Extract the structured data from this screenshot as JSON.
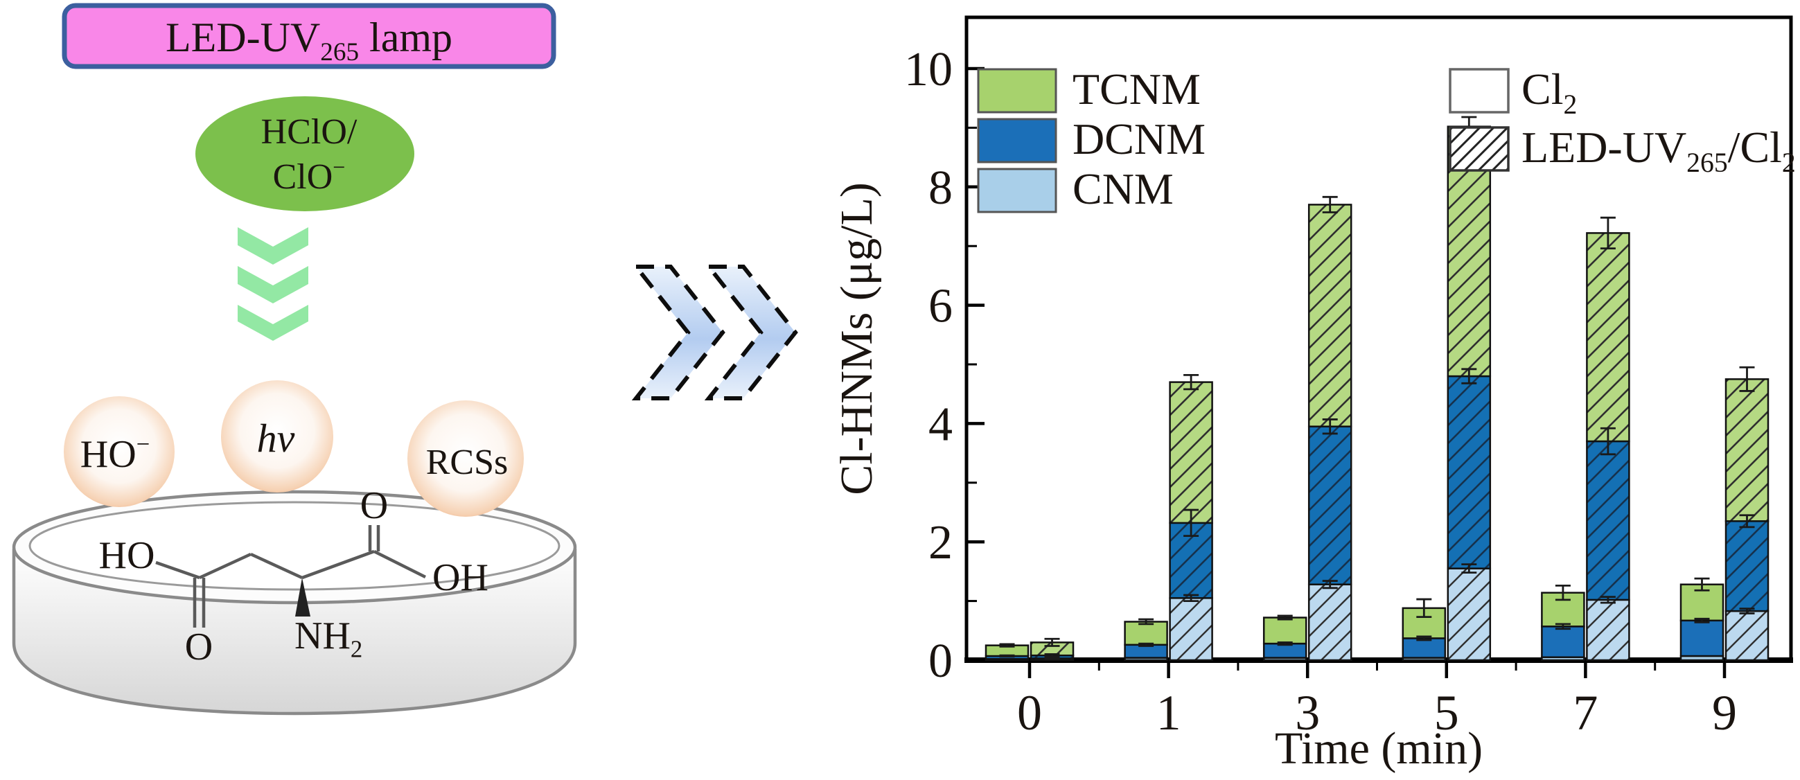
{
  "diagram": {
    "lamp_label": [
      {
        "t": "LED-UV"
      },
      {
        "t": "265",
        "s": "sub"
      },
      {
        "t": " lamp"
      }
    ],
    "oxidant_line1": "HClO/",
    "oxidant_line2": [
      {
        "t": "ClO"
      },
      {
        "t": "−",
        "s": "sup"
      }
    ],
    "species": {
      "hydroxide": [
        {
          "t": "HO"
        },
        {
          "t": "−",
          "s": "sup"
        }
      ],
      "photon": "hν",
      "rcs": "RCSs"
    },
    "molecule_labels": {
      "ho": "HO",
      "o_left": "O",
      "nh2": [
        {
          "t": "NH"
        },
        {
          "t": "2",
          "s": "sub"
        }
      ],
      "o_right": "O",
      "oh": "OH"
    },
    "colors": {
      "lamp_fill": "#f987e8",
      "lamp_border": "#3c5f9f",
      "oxidant_fill": "#7cc04c",
      "chevron_green": "#93e8a4",
      "circle_edge": "#f0b48c",
      "species_text": "#1795da",
      "arrow_light": "#e9f1fb",
      "arrow_dark": "#b3ccf0",
      "dish_light": "#ffffff",
      "dish_dark": "#d6d6d6",
      "bond": "#5a5a5a"
    }
  },
  "chart_data": {
    "type": "bar",
    "stacked": true,
    "title": "",
    "xlabel": "Time (min)",
    "ylabel": "Cl-HNMs (μg/L)",
    "categories": [
      "0",
      "1",
      "3",
      "5",
      "7",
      "9"
    ],
    "ylim": [
      0,
      10.9
    ],
    "yticks_major": [
      0,
      2,
      4,
      6,
      8,
      10
    ],
    "yticks_minor": [
      1,
      3,
      5,
      7,
      9
    ],
    "grid": false,
    "legend_position": "top-inside",
    "stack_order": [
      "CNM",
      "DCNM",
      "TCNM"
    ],
    "legend_components": [
      {
        "name": "TCNM",
        "color": "#a7d26d"
      },
      {
        "name": "DCNM",
        "color": "#1b6fb8"
      },
      {
        "name": "CNM",
        "color": "#a9cfe9"
      }
    ],
    "series": [
      {
        "name": "Cl2",
        "label": [
          {
            "t": "Cl"
          },
          {
            "t": "2",
            "s": "sub"
          }
        ],
        "style": "solid",
        "CNM": [
          0.02,
          0.04,
          0.04,
          0.04,
          0.05,
          0.07
        ],
        "DCNM": [
          0.05,
          0.22,
          0.24,
          0.33,
          0.52,
          0.6
        ],
        "TCNM": [
          0.18,
          0.39,
          0.44,
          0.51,
          0.57,
          0.61
        ],
        "err_CNM": [
          0,
          0,
          0,
          0,
          0,
          0
        ],
        "err_DCNM": [
          0.01,
          0.02,
          0.02,
          0.03,
          0.04,
          0.03
        ],
        "err_total": [
          0.02,
          0.04,
          0.03,
          0.15,
          0.12,
          0.1
        ]
      },
      {
        "name": "LED-UV265/Cl2",
        "label": [
          {
            "t": "LED-UV"
          },
          {
            "t": "265",
            "s": "sub"
          },
          {
            "t": "/Cl"
          },
          {
            "t": "2",
            "s": "sub"
          }
        ],
        "style": "hatched",
        "CNM": [
          0.03,
          1.05,
          1.28,
          1.55,
          1.02,
          0.83
        ],
        "DCNM": [
          0.05,
          1.27,
          2.67,
          3.25,
          2.68,
          1.52
        ],
        "TCNM": [
          0.22,
          2.38,
          3.75,
          4.22,
          3.52,
          2.4
        ],
        "err_CNM": [
          0.01,
          0.05,
          0.06,
          0.07,
          0.05,
          0.04
        ],
        "err_DCNM": [
          0.02,
          0.22,
          0.12,
          0.12,
          0.22,
          0.1
        ],
        "err_total": [
          0.06,
          0.12,
          0.13,
          0.16,
          0.26,
          0.2
        ]
      }
    ],
    "hatch_colors": {
      "TCNM_bg": "#b5d983",
      "DCNM_bg": "#1470b4",
      "CNM_bg": "#bcd9ef",
      "line": "#2f2f2f"
    }
  }
}
